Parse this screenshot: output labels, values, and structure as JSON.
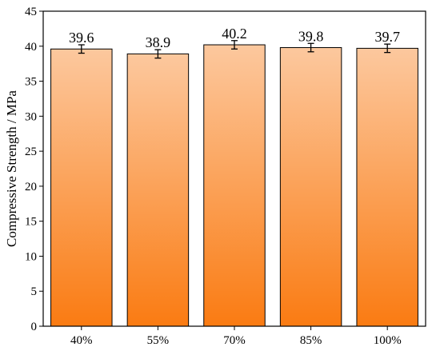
{
  "chart_data": {
    "type": "bar",
    "categories": [
      "40%",
      "55%",
      "70%",
      "85%",
      "100%"
    ],
    "values": [
      39.6,
      38.9,
      40.2,
      39.8,
      39.7
    ],
    "errors": [
      0.6,
      0.6,
      0.6,
      0.6,
      0.6
    ],
    "data_labels": [
      "39.6",
      "38.9",
      "40.2",
      "39.8",
      "39.7"
    ],
    "title": "",
    "xlabel": "",
    "ylabel": "Compressive Strength / MPa",
    "ylim": [
      0,
      45
    ],
    "yticks": [
      0,
      5,
      10,
      15,
      20,
      25,
      30,
      35,
      40,
      45
    ],
    "grid": false,
    "legend": "none",
    "bar_gradient": {
      "top": "#FCC89E",
      "bottom": "#FA7B12"
    },
    "bar_edge_color": "#000000"
  }
}
